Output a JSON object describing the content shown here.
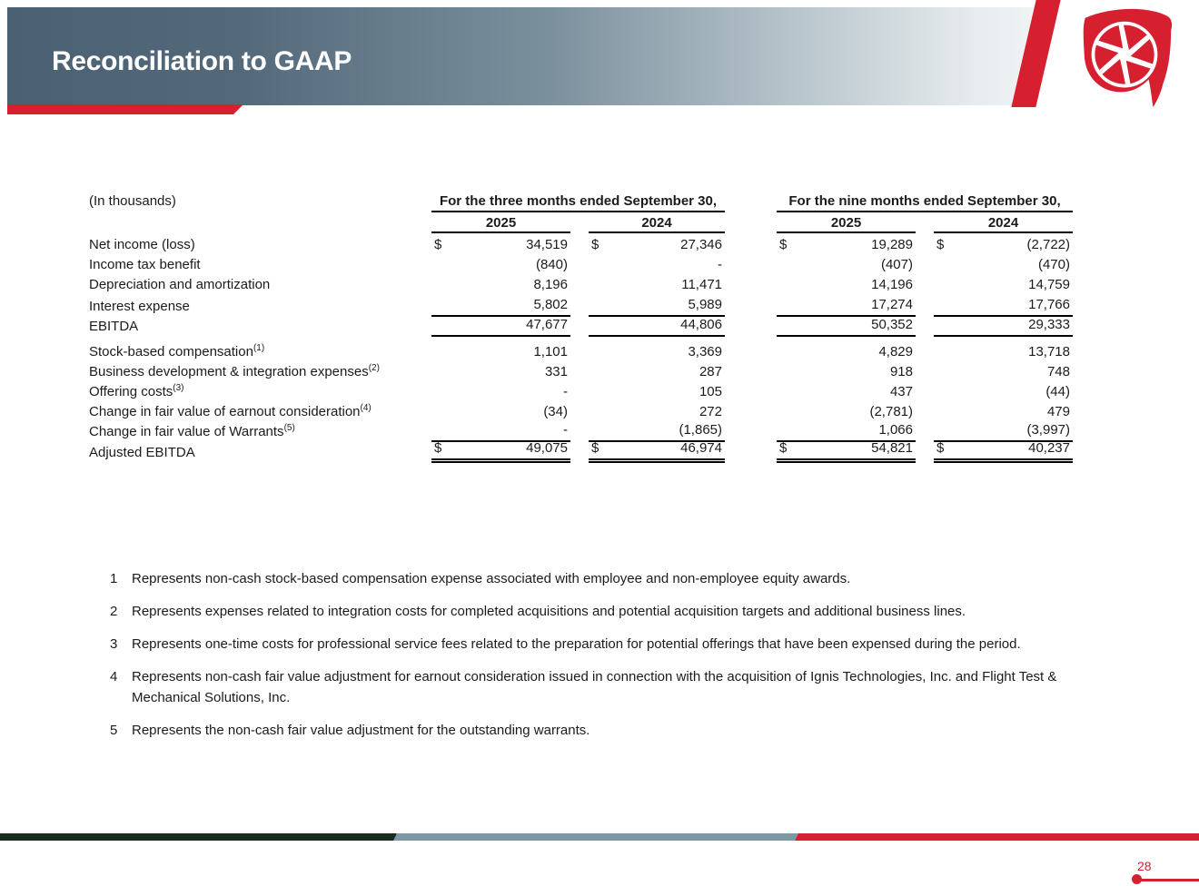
{
  "header": {
    "title": "Reconciliation to GAAP",
    "logo": "aperture-logo",
    "accent_red": "#d7202f",
    "band_dark": "#4a6173"
  },
  "table": {
    "units_label": "(In thousands)",
    "period_groups": [
      {
        "label": "For the three months ended September 30,",
        "years": [
          "2025",
          "2024"
        ]
      },
      {
        "label": "For the nine months ended September 30,",
        "years": [
          "2025",
          "2024"
        ]
      }
    ],
    "rows": [
      {
        "label": "Net income (loss)",
        "sup": "",
        "dollar": true,
        "values": [
          "34,519",
          "27,346",
          "19,289",
          "(2,722)"
        ],
        "border": "none"
      },
      {
        "label": "Income tax benefit",
        "sup": "",
        "dollar": false,
        "values": [
          "(840)",
          "-",
          "(407)",
          "(470)"
        ],
        "border": "none"
      },
      {
        "label": "Depreciation and amortization",
        "sup": "",
        "dollar": false,
        "values": [
          "8,196",
          "11,471",
          "14,196",
          "14,759"
        ],
        "border": "none"
      },
      {
        "label": "Interest expense",
        "sup": "",
        "dollar": false,
        "values": [
          "5,802",
          "5,989",
          "17,274",
          "17,766"
        ],
        "border": "bottom"
      },
      {
        "label": "EBITDA",
        "sup": "",
        "dollar": false,
        "values": [
          "47,677",
          "44,806",
          "50,352",
          "29,333"
        ],
        "border": "bottom"
      },
      {
        "label": "Stock-based compensation",
        "sup": "(1)",
        "dollar": false,
        "values": [
          "1,101",
          "3,369",
          "4,829",
          "13,718"
        ],
        "border": "none"
      },
      {
        "label": "Business development & integration expenses",
        "sup": "(2)",
        "dollar": false,
        "values": [
          "331",
          "287",
          "918",
          "748"
        ],
        "border": "none"
      },
      {
        "label": "Offering costs",
        "sup": "(3)",
        "dollar": false,
        "values": [
          "-",
          "105",
          "437",
          "(44)"
        ],
        "border": "none"
      },
      {
        "label": "Change in fair value of earnout consideration",
        "sup": "(4)",
        "dollar": false,
        "values": [
          "(34)",
          "272",
          "(2,781)",
          "479"
        ],
        "border": "none"
      },
      {
        "label": "Change in fair value of Warrants",
        "sup": "(5)",
        "dollar": false,
        "values": [
          "-",
          "(1,865)",
          "1,066",
          "(3,997)"
        ],
        "border": "bottom"
      },
      {
        "label": "Adjusted EBITDA",
        "sup": "",
        "dollar": true,
        "values": [
          "49,075",
          "46,974",
          "54,821",
          "40,237"
        ],
        "border": "double"
      }
    ]
  },
  "footnotes": [
    {
      "num": "1",
      "text": "Represents non-cash stock-based compensation expense associated with employee and non-employee equity awards."
    },
    {
      "num": "2",
      "text": "Represents expenses related to integration costs for completed acquisitions and potential acquisition targets and additional business lines."
    },
    {
      "num": "3",
      "text": "Represents one-time costs for professional service fees related to the preparation for potential offerings that have been expensed during the period."
    },
    {
      "num": "4",
      "text": "Represents non-cash fair value adjustment for earnout consideration issued in connection with the acquisition of Ignis Technologies, Inc. and Flight Test & Mechanical Solutions, Inc."
    },
    {
      "num": "5",
      "text": "Represents the non-cash fair value adjustment for the outstanding warrants."
    }
  ],
  "footer": {
    "page_number": "28",
    "bar_colors": [
      "#1a2b21",
      "#7e97a4",
      "#d7202f"
    ]
  }
}
